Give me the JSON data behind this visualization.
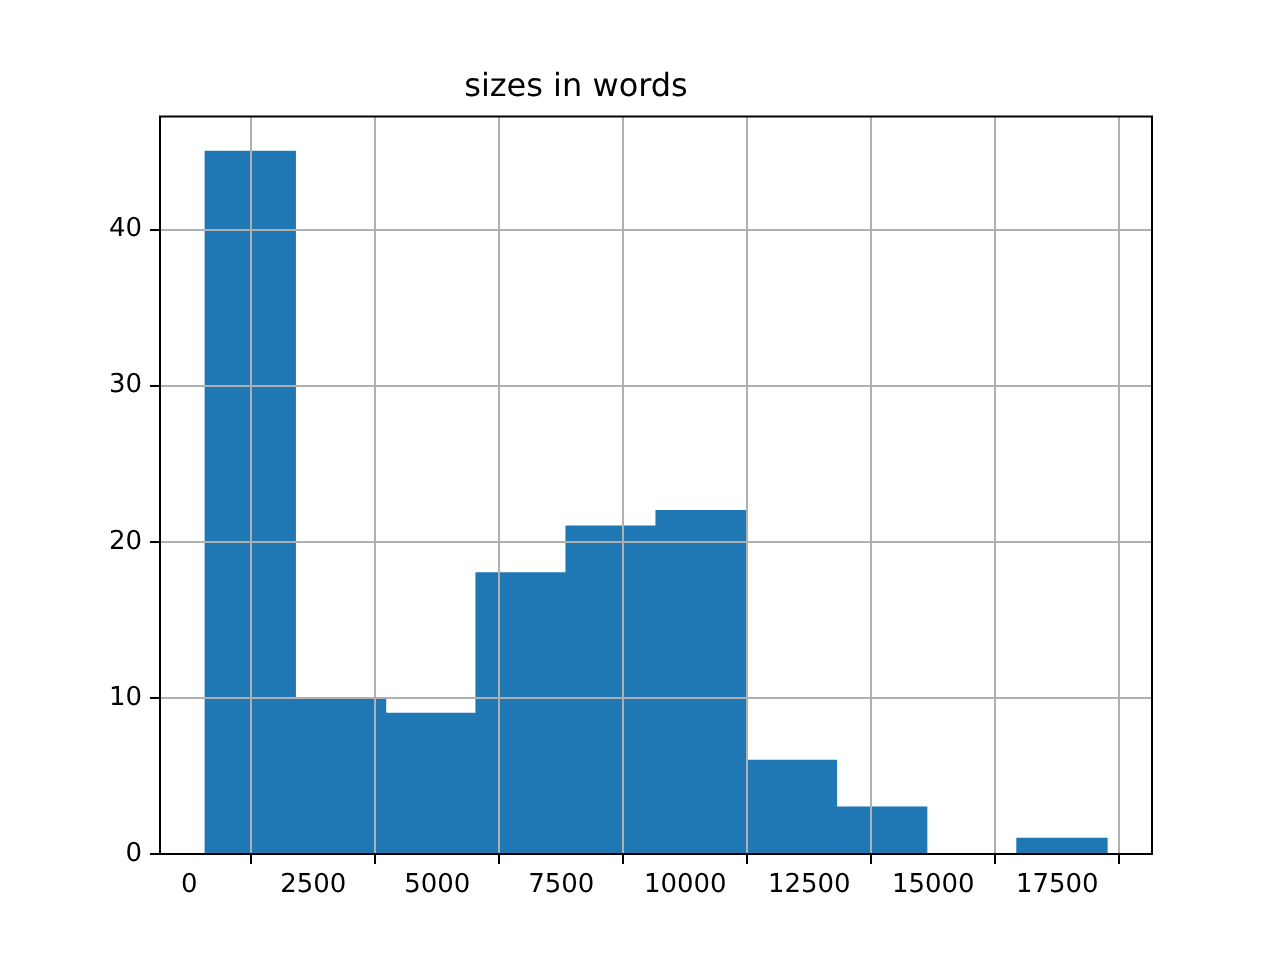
{
  "chart_data": {
    "type": "histogram",
    "title": "sizes in words",
    "bins": [
      320,
      2140,
      3960,
      5780,
      7600,
      9410,
      11230,
      13050,
      14870,
      16690,
      18500
    ],
    "values": [
      45,
      10,
      9,
      18,
      21,
      22,
      6,
      3,
      0,
      1
    ],
    "color": "#1f77b4",
    "xlim": [
      -590,
      19410
    ],
    "xticks": [
      0,
      2500,
      5000,
      7500,
      10000,
      12500,
      15000,
      17500
    ],
    "ylim": [
      0,
      47.25
    ],
    "yticks": [
      0,
      10,
      20,
      30,
      40
    ],
    "grid": true
  }
}
